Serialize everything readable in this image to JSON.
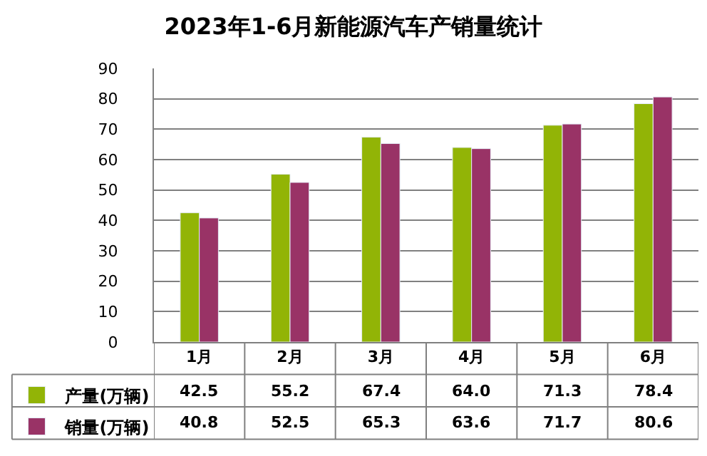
{
  "chart_data": {
    "type": "bar",
    "title": "2023年1-6月新能源汽车产销量统计",
    "categories": [
      "1月",
      "2月",
      "3月",
      "4月",
      "5月",
      "6月"
    ],
    "series": [
      {
        "name": "产量(万辆)",
        "color": "#92b406",
        "values": [
          42.5,
          55.2,
          67.4,
          64.0,
          71.3,
          78.4
        ],
        "value_labels": [
          "42.5",
          "55.2",
          "67.4",
          "64.0",
          "71.3",
          "78.4"
        ]
      },
      {
        "name": "销量(万辆)",
        "color": "#993366",
        "values": [
          40.8,
          52.5,
          65.3,
          63.6,
          71.7,
          80.6
        ],
        "value_labels": [
          "40.8",
          "52.5",
          "65.3",
          "63.6",
          "71.7",
          "80.6"
        ]
      }
    ],
    "ylim": [
      0,
      90
    ],
    "yticks": [
      0,
      10,
      20,
      30,
      40,
      50,
      60,
      70,
      80,
      90
    ],
    "grid": "y",
    "legend": "bottom left"
  }
}
